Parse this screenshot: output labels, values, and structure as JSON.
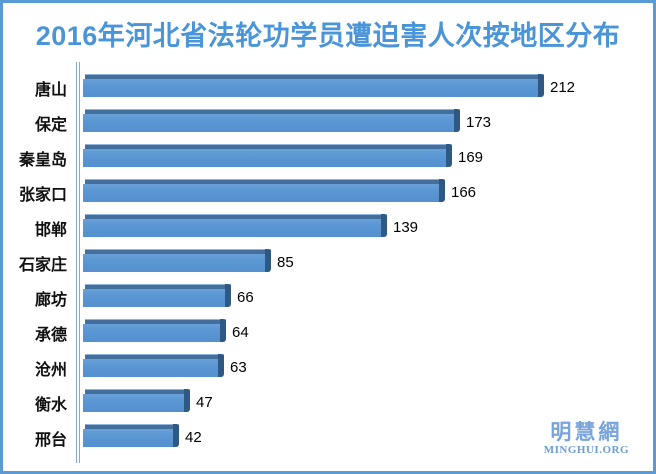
{
  "title": {
    "text": "2016年河北省法轮功学员遭迫害人次按地区分布",
    "color": "#4a94d8"
  },
  "chart_data": {
    "type": "bar",
    "orientation": "horizontal",
    "title": "2016年河北省法轮功学员遭迫害人次按地区分布",
    "categories": [
      "唐山",
      "保定",
      "秦皇岛",
      "张家口",
      "邯郸",
      "石家庄",
      "廊坊",
      "承德",
      "沧州",
      "衡水",
      "邢台"
    ],
    "values": [
      212,
      173,
      169,
      166,
      139,
      85,
      66,
      64,
      63,
      47,
      42
    ],
    "xlabel": "",
    "ylabel": "",
    "xlim": [
      0,
      230
    ],
    "grid": false,
    "legend": false,
    "data_labels": true,
    "bar_color": "#5b97d3",
    "bar_top_bevel_color": "#446f9d",
    "bar_end_bevel_color": "#2e5984",
    "value_label_color": "#000000",
    "axis_line_color": "#84a9d8",
    "frame_border_color": "#5b9bd5"
  },
  "watermark": {
    "cjk": "明慧網",
    "latin": "MINGHUI.ORG",
    "color": "#78a4db"
  }
}
